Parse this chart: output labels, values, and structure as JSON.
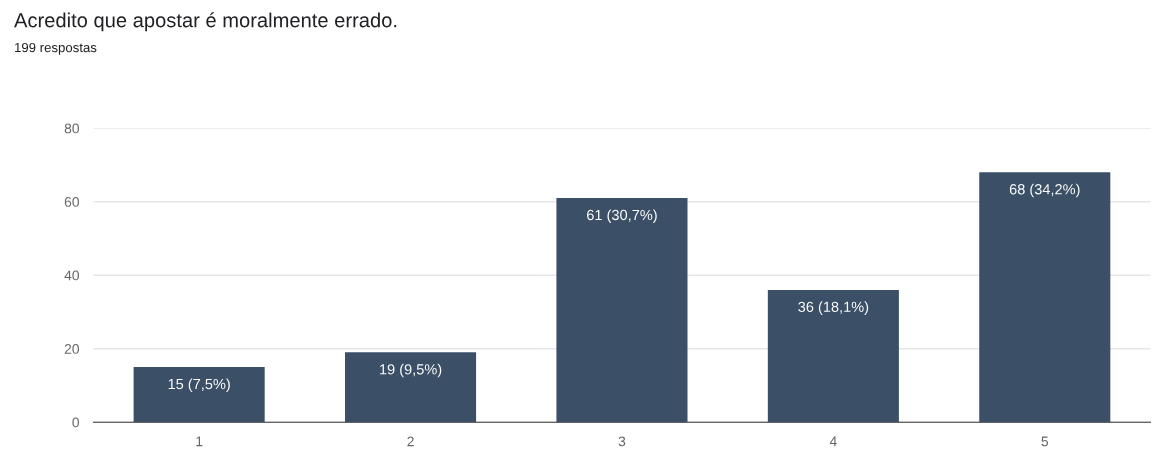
{
  "chart_data": {
    "type": "bar",
    "title": "Acredito que apostar é moralmente errado.",
    "subtitle": "199 respostas",
    "categories": [
      "1",
      "2",
      "3",
      "4",
      "5"
    ],
    "values": [
      15,
      19,
      61,
      36,
      68
    ],
    "value_labels": [
      "15 (7,5%)",
      "19 (9,5%)",
      "61 (30,7%)",
      "36 (18,1%)",
      "68 (34,2%)"
    ],
    "color": "#3b4f67",
    "ylim": [
      0,
      80
    ],
    "yticks": [
      0,
      20,
      40,
      60,
      80
    ],
    "grid": "y"
  }
}
